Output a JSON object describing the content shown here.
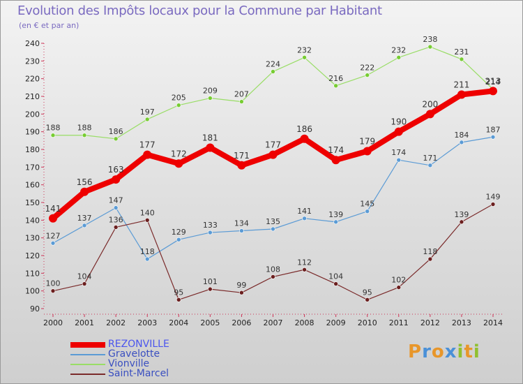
{
  "title": "Evolution des Impôts locaux pour la Commune par Habitant",
  "subtitle": "(en € et par an)",
  "logo": {
    "text": "Proxiti",
    "letters": [
      {
        "ch": "P",
        "color": "#e8962a"
      },
      {
        "ch": "r",
        "color": "#4a90d8"
      },
      {
        "ch": "o",
        "color": "#e8962a"
      },
      {
        "ch": "x",
        "color": "#4a90d8"
      },
      {
        "ch": "i",
        "color": "#90c030"
      },
      {
        "ch": "t",
        "color": "#e8962a"
      },
      {
        "ch": "i",
        "color": "#90c030"
      }
    ]
  },
  "chart_data": {
    "type": "line",
    "title": "Evolution des Impôts locaux pour la Commune par Habitant",
    "ylabel": "(en € et par an)",
    "x": [
      "2000",
      "2001",
      "2002",
      "2003",
      "2004",
      "2005",
      "2006",
      "2007",
      "2008",
      "2009",
      "2010",
      "2011",
      "2012",
      "2013",
      "2014"
    ],
    "ylim": [
      90,
      240
    ],
    "yticks": [
      90,
      100,
      110,
      120,
      130,
      140,
      150,
      160,
      170,
      180,
      190,
      200,
      210,
      220,
      230,
      240
    ],
    "grid": false,
    "legend": "bottom-left",
    "series": [
      {
        "name": "REZONVILLE",
        "color": "#ee0000",
        "marker": "#ee0000",
        "width": 8,
        "label_color": "#333333",
        "values": [
          141,
          156,
          163,
          177,
          172,
          181,
          171,
          177,
          186,
          174,
          179,
          190,
          200,
          211,
          213
        ]
      },
      {
        "name": "Gravelotte",
        "color": "#5b9bd5",
        "marker": "#5b9bd5",
        "width": 1.2,
        "label_color": "#333333",
        "values": [
          127,
          137,
          147,
          118,
          129,
          133,
          134,
          135,
          141,
          139,
          145,
          174,
          171,
          184,
          187
        ]
      },
      {
        "name": "Vionville",
        "color": "#99dd66",
        "marker": "#77cc33",
        "width": 1.2,
        "label_color": "#333333",
        "values": [
          188,
          188,
          186,
          197,
          205,
          209,
          207,
          224,
          232,
          216,
          222,
          232,
          238,
          231,
          214
        ]
      },
      {
        "name": "Saint-Marcel",
        "color": "#7a2a2a",
        "marker": "#6b1f1f",
        "width": 1.2,
        "label_color": "#333333",
        "values": [
          100,
          104,
          136,
          140,
          95,
          101,
          99,
          108,
          112,
          104,
          95,
          102,
          118,
          139,
          149
        ]
      }
    ]
  }
}
